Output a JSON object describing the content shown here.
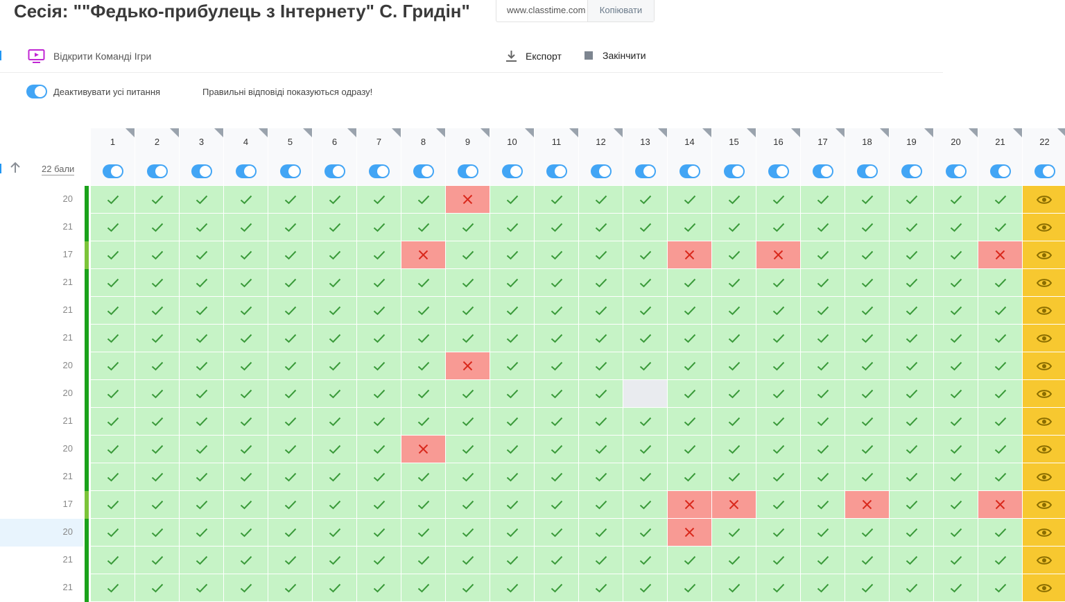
{
  "header": {
    "title": "Сесія: \"\"Федько-прибулець з Інтернету\" С. Гридін\"",
    "link_url": "www.classtime.com",
    "copy_label": "Копіювати"
  },
  "toolbar": {
    "open_games_label": "Відкрити Команді Ігри",
    "export_label": "Експорт",
    "finish_label": "Закінчити"
  },
  "settings": {
    "deactivate_label": "Деактивувати усі питання",
    "notice": "Правильні відповіді показуються одразу!"
  },
  "table": {
    "points_header": "22 бали",
    "questions": [
      "1",
      "2",
      "3",
      "4",
      "5",
      "6",
      "7",
      "8",
      "9",
      "10",
      "11",
      "12",
      "13",
      "14",
      "15",
      "16",
      "17",
      "18",
      "19",
      "20",
      "21",
      "22"
    ],
    "rows": [
      {
        "score": "20",
        "wrong": [
          9
        ],
        "empty": []
      },
      {
        "score": "21",
        "wrong": [],
        "empty": []
      },
      {
        "score": "17",
        "wrong": [
          8,
          14,
          16,
          21
        ],
        "empty": []
      },
      {
        "score": "21",
        "wrong": [],
        "empty": []
      },
      {
        "score": "21",
        "wrong": [],
        "empty": []
      },
      {
        "score": "21",
        "wrong": [],
        "empty": []
      },
      {
        "score": "20",
        "wrong": [
          9
        ],
        "empty": []
      },
      {
        "score": "20",
        "wrong": [],
        "empty": [
          13
        ]
      },
      {
        "score": "21",
        "wrong": [],
        "empty": []
      },
      {
        "score": "20",
        "wrong": [
          8
        ],
        "empty": []
      },
      {
        "score": "21",
        "wrong": [],
        "empty": []
      },
      {
        "score": "17",
        "wrong": [
          14,
          15,
          18,
          21
        ],
        "empty": []
      },
      {
        "score": "20",
        "wrong": [
          14
        ],
        "empty": []
      },
      {
        "score": "21",
        "wrong": [],
        "empty": []
      },
      {
        "score": "21",
        "wrong": [],
        "empty": []
      }
    ],
    "selected_row": 12
  },
  "colors": {
    "correct": "#c6f3c6",
    "wrong": "#f89a94",
    "empty": "#e9ebef",
    "eye_column": "#f7c830",
    "accent": "#42a5f5",
    "check": "#3a9a3a",
    "cross": "#d9291c"
  },
  "icons": {
    "games": "monitor-play-icon",
    "export": "download-icon",
    "finish": "stop-square-icon",
    "sort": "arrow-up-icon",
    "correct": "checkmark-icon",
    "wrong": "cross-icon",
    "view": "eye-icon"
  }
}
